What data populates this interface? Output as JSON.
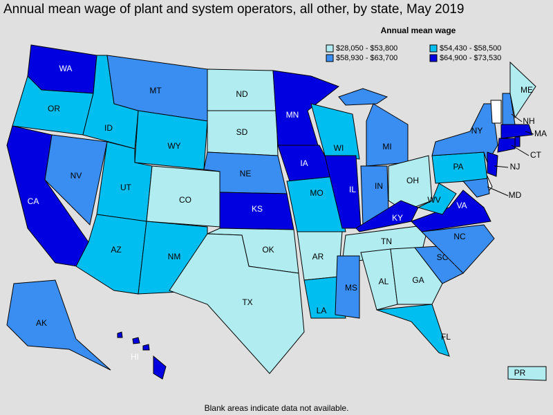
{
  "title": "Annual mean wage of plant and system operators, all other, by state, May 2019",
  "legend": {
    "title": "Annual mean wage",
    "items": [
      {
        "label": "$28,050 - $53,800",
        "color": "#b0ecf0"
      },
      {
        "label": "$54,430 - $58,500",
        "color": "#00bff0"
      },
      {
        "label": "$58,930 - $63,700",
        "color": "#3a8ef2"
      },
      {
        "label": "$64,900 - $73,530",
        "color": "#0000e0"
      }
    ]
  },
  "states": [
    {
      "label": "WA",
      "color": "#0000e0"
    },
    {
      "label": "OR",
      "color": "#00bff0"
    },
    {
      "label": "CA",
      "color": "#0000e0"
    },
    {
      "label": "NV",
      "color": "#3a8ef2"
    },
    {
      "label": "ID",
      "color": "#00bff0"
    },
    {
      "label": "MT",
      "color": "#3a8ef2"
    },
    {
      "label": "WY",
      "color": "#00bff0"
    },
    {
      "label": "UT",
      "color": "#00bff0"
    },
    {
      "label": "CO",
      "color": "#b0ecf0"
    },
    {
      "label": "AZ",
      "color": "#00bff0"
    },
    {
      "label": "NM",
      "color": "#00bff0"
    },
    {
      "label": "ND",
      "color": "#b0ecf0"
    },
    {
      "label": "SD",
      "color": "#b0ecf0"
    },
    {
      "label": "NE",
      "color": "#3a8ef2"
    },
    {
      "label": "KS",
      "color": "#0000e0"
    },
    {
      "label": "OK",
      "color": "#b0ecf0"
    },
    {
      "label": "TX",
      "color": "#b0ecf0"
    },
    {
      "label": "MN",
      "color": "#0000e0"
    },
    {
      "label": "IA",
      "color": "#0000e0"
    },
    {
      "label": "MO",
      "color": "#00bff0"
    },
    {
      "label": "AR",
      "color": "#b0ecf0"
    },
    {
      "label": "LA",
      "color": "#00bff0"
    },
    {
      "label": "WI",
      "color": "#00bff0"
    },
    {
      "label": "IL",
      "color": "#0000e0"
    },
    {
      "label": "MI",
      "color": "#3a8ef2"
    },
    {
      "label": "IN",
      "color": "#3a8ef2"
    },
    {
      "label": "OH",
      "color": "#b0ecf0"
    },
    {
      "label": "KY",
      "color": "#0000e0"
    },
    {
      "label": "TN",
      "color": "#b0ecf0"
    },
    {
      "label": "MS",
      "color": "#3a8ef2"
    },
    {
      "label": "AL",
      "color": "#b0ecf0"
    },
    {
      "label": "GA",
      "color": "#b0ecf0"
    },
    {
      "label": "FL",
      "color": "#00bff0"
    },
    {
      "label": "SC",
      "color": "#3a8ef2"
    },
    {
      "label": "NC",
      "color": "#3a8ef2"
    },
    {
      "label": "VA",
      "color": "#0000e0"
    },
    {
      "label": "WV",
      "color": "#00bff0"
    },
    {
      "label": "PA",
      "color": "#00bff0"
    },
    {
      "label": "NY",
      "color": "#3a8ef2"
    },
    {
      "label": null,
      "color": "#ffffff"
    },
    {
      "label": "NH",
      "color": "#3a8ef2"
    },
    {
      "label": "ME",
      "color": "#b0ecf0"
    },
    {
      "label": "MA",
      "color": "#0000e0"
    },
    {
      "label": "CT",
      "color": "#0000e0"
    },
    {
      "label": null,
      "color": "#0000e0"
    },
    {
      "label": "NJ",
      "color": "#0000e0"
    },
    {
      "label": null,
      "color": "#ffffff"
    },
    {
      "label": "MD",
      "color": "#3a8ef2"
    },
    {
      "label": "AK",
      "color": "#3a8ef2"
    },
    {
      "label": "HI",
      "color": "#0000e0"
    },
    {
      "label": "PR",
      "color": "#b0ecf0"
    }
  ],
  "footnote": "Blank areas indicate data not available."
}
